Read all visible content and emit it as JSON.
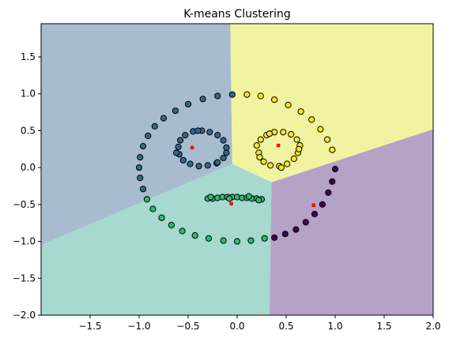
{
  "chart_data": {
    "type": "scatter",
    "title": "K-means Clustering",
    "xlabel": "",
    "ylabel": "",
    "xlim": [
      -2.0,
      2.0
    ],
    "ylim": [
      -2.0,
      1.95
    ],
    "xticks": [
      -1.5,
      -1.0,
      -0.5,
      0.0,
      0.5,
      1.0,
      1.5,
      2.0
    ],
    "xtick_labels": [
      "−1.5",
      "−1.0",
      "−0.5",
      "0.0",
      "0.5",
      "1.0",
      "1.5",
      "2.0"
    ],
    "yticks": [
      -2.0,
      -1.5,
      -1.0,
      -0.5,
      0.0,
      0.5,
      1.0,
      1.5
    ],
    "ytick_labels": [
      "−2.0",
      "−1.5",
      "−1.0",
      "−0.5",
      "0.0",
      "0.5",
      "1.0",
      "1.5"
    ],
    "grid": false,
    "colors": {
      "cluster_0": "#440154",
      "cluster_1": "#31688e",
      "cluster_2": "#35b779",
      "cluster_3": "#fde725",
      "region_0": "#b5a3c7",
      "region_1": "#a8bccf",
      "region_2": "#a6d9cf",
      "region_3": "#f1f3a1",
      "centroid": "#ff0000"
    },
    "regions": [
      {
        "cluster": 1,
        "polygon": [
          [
            -2.0,
            1.95
          ],
          [
            -0.07,
            1.95
          ],
          [
            -0.05,
            0.05
          ],
          [
            -2.0,
            -1.05
          ]
        ]
      },
      {
        "cluster": 3,
        "polygon": [
          [
            -0.07,
            1.95
          ],
          [
            2.0,
            1.95
          ],
          [
            2.0,
            0.52
          ],
          [
            0.35,
            -0.2
          ],
          [
            -0.05,
            0.05
          ]
        ]
      },
      {
        "cluster": 0,
        "polygon": [
          [
            0.35,
            -0.2
          ],
          [
            2.0,
            0.52
          ],
          [
            2.0,
            -2.0
          ],
          [
            0.33,
            -2.0
          ]
        ]
      },
      {
        "cluster": 2,
        "polygon": [
          [
            -2.0,
            -1.05
          ],
          [
            -0.05,
            0.05
          ],
          [
            0.35,
            -0.2
          ],
          [
            0.33,
            -2.0
          ],
          [
            -2.0,
            -2.0
          ]
        ]
      }
    ],
    "series": [
      {
        "cluster": 0,
        "points": [
          [
            1.0,
            -0.02
          ],
          [
            0.97,
            -0.19
          ],
          [
            0.93,
            -0.34
          ],
          [
            0.87,
            -0.5
          ],
          [
            0.79,
            -0.63
          ],
          [
            0.7,
            -0.74
          ],
          [
            0.6,
            -0.84
          ],
          [
            0.49,
            -0.9
          ],
          [
            0.38,
            -0.95
          ]
        ]
      },
      {
        "cluster": 1,
        "points": [
          [
            -0.05,
            0.99
          ],
          [
            -0.2,
            0.97
          ],
          [
            -0.35,
            0.93
          ],
          [
            -0.5,
            0.86
          ],
          [
            -0.63,
            0.77
          ],
          [
            -0.75,
            0.67
          ],
          [
            -0.84,
            0.56
          ],
          [
            -0.91,
            0.43
          ],
          [
            -0.96,
            0.29
          ],
          [
            -0.99,
            0.14
          ],
          [
            -1.0,
            0.0
          ],
          [
            -0.99,
            -0.14
          ],
          [
            -0.96,
            -0.29
          ],
          [
            -0.11,
            0.27
          ],
          [
            -0.14,
            0.37
          ],
          [
            -0.2,
            0.44
          ],
          [
            -0.28,
            0.48
          ],
          [
            -0.36,
            0.5
          ],
          [
            -0.45,
            0.49
          ],
          [
            -0.53,
            0.44
          ],
          [
            -0.58,
            0.37
          ],
          [
            -0.6,
            0.28
          ],
          [
            -0.59,
            0.18
          ],
          [
            -0.55,
            0.1
          ],
          [
            -0.48,
            0.05
          ],
          [
            -0.39,
            0.02
          ],
          [
            -0.3,
            0.03
          ],
          [
            -0.21,
            0.06
          ],
          [
            -0.14,
            0.13
          ],
          [
            -0.11,
            0.2
          ],
          [
            -0.62,
            0.2
          ],
          [
            -0.4,
            0.5
          ],
          [
            -0.2,
            0.07
          ]
        ]
      },
      {
        "cluster": 2,
        "points": [
          [
            -0.92,
            -0.43
          ],
          [
            -0.86,
            -0.56
          ],
          [
            -0.77,
            -0.68
          ],
          [
            -0.67,
            -0.78
          ],
          [
            -0.56,
            -0.86
          ],
          [
            -0.43,
            -0.92
          ],
          [
            -0.29,
            -0.96
          ],
          [
            -0.14,
            -0.99
          ],
          [
            0.0,
            -1.0
          ],
          [
            0.14,
            -0.99
          ],
          [
            0.28,
            -0.96
          ],
          [
            -0.3,
            -0.42
          ],
          [
            -0.25,
            -0.42
          ],
          [
            -0.2,
            -0.41
          ],
          [
            -0.15,
            -0.4
          ],
          [
            -0.1,
            -0.4
          ],
          [
            -0.05,
            -0.4
          ],
          [
            0.0,
            -0.4
          ],
          [
            0.05,
            -0.41
          ],
          [
            0.1,
            -0.41
          ],
          [
            0.15,
            -0.42
          ],
          [
            0.2,
            -0.42
          ],
          [
            0.25,
            -0.43
          ],
          [
            -0.27,
            -0.4
          ],
          [
            0.22,
            -0.44
          ],
          [
            -0.08,
            -0.42
          ],
          [
            0.12,
            -0.39
          ]
        ]
      },
      {
        "cluster": 3,
        "points": [
          [
            0.1,
            0.99
          ],
          [
            0.24,
            0.97
          ],
          [
            0.38,
            0.92
          ],
          [
            0.52,
            0.85
          ],
          [
            0.65,
            0.76
          ],
          [
            0.76,
            0.65
          ],
          [
            0.85,
            0.52
          ],
          [
            0.92,
            0.38
          ],
          [
            0.97,
            0.24
          ],
          [
            0.22,
            0.2
          ],
          [
            0.2,
            0.3
          ],
          [
            0.24,
            0.38
          ],
          [
            0.3,
            0.44
          ],
          [
            0.38,
            0.48
          ],
          [
            0.47,
            0.48
          ],
          [
            0.55,
            0.45
          ],
          [
            0.61,
            0.38
          ],
          [
            0.64,
            0.3
          ],
          [
            0.62,
            0.2
          ],
          [
            0.58,
            0.12
          ],
          [
            0.51,
            0.05
          ],
          [
            0.43,
            0.02
          ],
          [
            0.34,
            0.03
          ],
          [
            0.27,
            0.08
          ],
          [
            0.23,
            0.14
          ],
          [
            0.63,
            0.25
          ],
          [
            0.33,
            0.46
          ],
          [
            0.45,
            0.0
          ]
        ]
      }
    ],
    "centroids": [
      [
        0.78,
        -0.51
      ],
      [
        -0.46,
        0.27
      ],
      [
        -0.06,
        -0.49
      ],
      [
        0.42,
        0.3
      ]
    ]
  }
}
